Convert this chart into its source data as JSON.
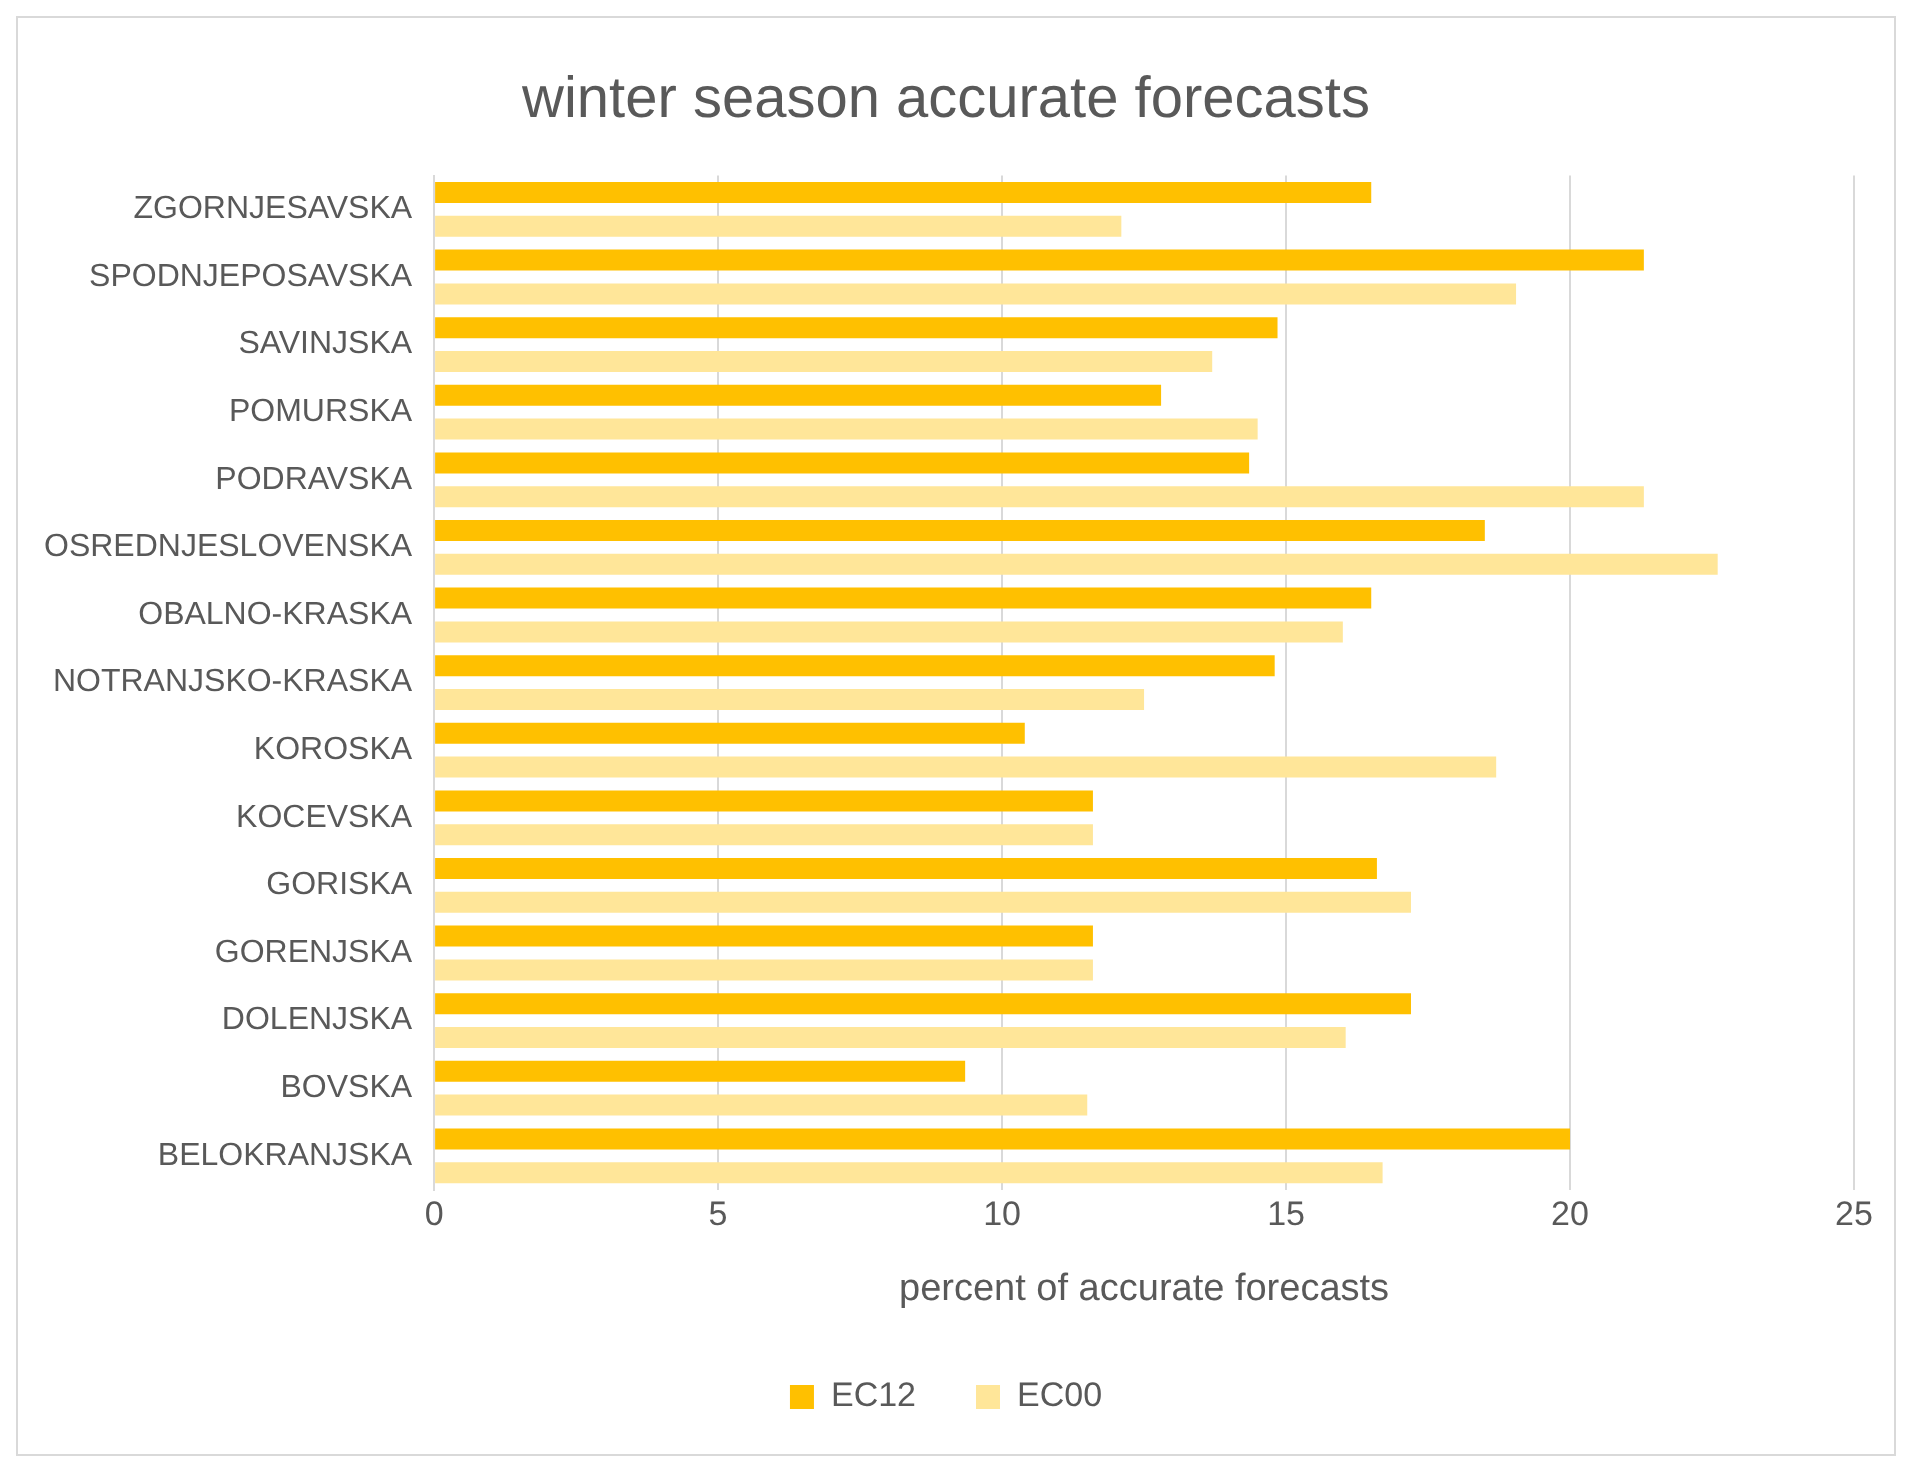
{
  "chart_data": {
    "type": "bar",
    "orientation": "horizontal",
    "title": "winter season accurate forecasts",
    "xlabel": "percent of accurate forecasts",
    "categories": [
      "ZGORNJESAVSKA",
      "SPODNJEPOSAVSKA",
      "SAVINJSKA",
      "POMURSKA",
      "PODRAVSKA",
      "OSREDNJESLOVENSKA",
      "OBALNO-KRASKA",
      "NOTRANJSKO-KRASKA",
      "KOROSKA",
      "KOCEVSKA",
      "GORISKA",
      "GORENJSKA",
      "DOLENJSKA",
      "BOVSKA",
      "BELOKRANJSKA"
    ],
    "series": [
      {
        "name": "EC12",
        "color": "#ffc000",
        "values": [
          16.5,
          21.3,
          14.85,
          12.8,
          14.35,
          18.5,
          16.5,
          14.8,
          10.4,
          11.6,
          16.6,
          11.6,
          17.2,
          9.35,
          20.0
        ]
      },
      {
        "name": "EC00",
        "color": "#ffe699",
        "values": [
          12.1,
          19.05,
          13.7,
          14.5,
          21.3,
          22.6,
          16.0,
          12.5,
          18.7,
          11.6,
          17.2,
          11.6,
          16.05,
          11.5,
          16.7
        ]
      }
    ],
    "xlim": [
      0,
      25
    ],
    "xticks": [
      0,
      5,
      10,
      15,
      20,
      25
    ],
    "grid": "x",
    "legend": "bottom"
  }
}
